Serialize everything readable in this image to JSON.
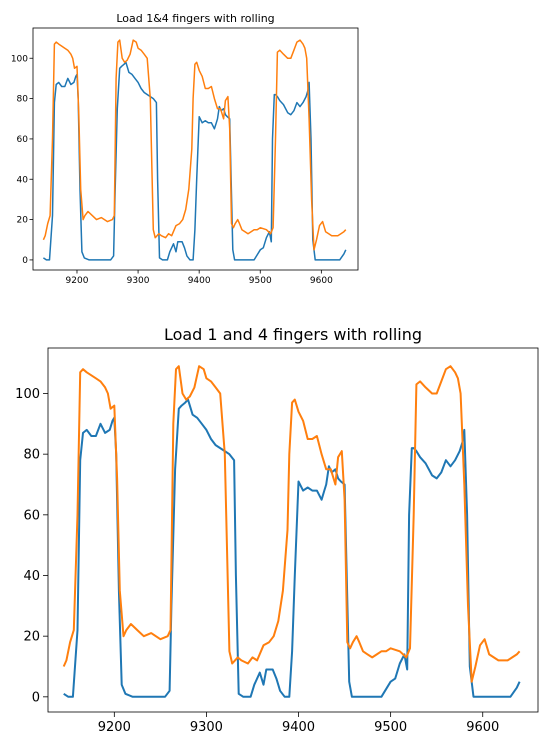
{
  "chart_data": [
    {
      "type": "line",
      "title": "Load 1&4 fingers with rolling",
      "xlabel": "",
      "ylabel": "",
      "xlim": [
        9128,
        9660
      ],
      "ylim": [
        -5,
        115
      ],
      "xticks": [
        "9200",
        "9300",
        "9400",
        "9500",
        "9600"
      ],
      "yticks": [
        "0",
        "20",
        "40",
        "60",
        "80",
        "100"
      ],
      "grid": false,
      "series": [
        {
          "color": "#1f77b4",
          "x": [
            9145,
            9150,
            9155,
            9160,
            9163,
            9166,
            9170,
            9175,
            9180,
            9185,
            9190,
            9195,
            9198,
            9200,
            9202,
            9205,
            9208,
            9212,
            9220,
            9240,
            9255,
            9260,
            9262,
            9266,
            9270,
            9273,
            9277,
            9280,
            9285,
            9290,
            9295,
            9300,
            9305,
            9310,
            9320,
            9325,
            9330,
            9332,
            9335,
            9340,
            9348,
            9352,
            9358,
            9362,
            9365,
            9368,
            9372,
            9376,
            9380,
            9385,
            9390,
            9393,
            9396,
            9400,
            9405,
            9410,
            9415,
            9420,
            9425,
            9428,
            9430,
            9433,
            9436,
            9440,
            9443,
            9446,
            9450,
            9455,
            9458,
            9462,
            9470,
            9480,
            9490,
            9500,
            9505,
            9510,
            9515,
            9518,
            9520,
            9523,
            9525,
            9528,
            9532,
            9538,
            9545,
            9550,
            9555,
            9560,
            9565,
            9570,
            9575,
            9578,
            9580,
            9583,
            9586,
            9590,
            9600,
            9610,
            9620,
            9630,
            9637,
            9640
          ],
          "y": [
            1,
            0,
            0,
            22,
            78,
            87,
            88,
            86,
            86,
            90,
            87,
            88,
            91,
            92,
            80,
            35,
            4,
            1,
            0,
            0,
            0,
            2,
            30,
            75,
            95,
            96,
            97,
            98,
            93,
            92,
            90,
            88,
            85,
            83,
            81,
            80,
            78,
            40,
            1,
            0,
            0,
            4,
            8,
            4,
            9,
            9,
            9,
            6,
            2,
            0,
            0,
            15,
            40,
            71,
            68,
            69,
            68,
            68,
            65,
            68,
            70,
            76,
            74,
            75,
            72,
            71,
            70,
            5,
            0,
            0,
            0,
            0,
            0,
            5,
            6,
            11,
            14,
            9,
            60,
            82,
            82,
            81,
            79,
            77,
            73,
            72,
            74,
            78,
            76,
            78,
            81,
            84,
            88,
            60,
            10,
            0,
            0,
            0,
            0,
            0,
            3,
            5
          ]
        },
        {
          "color": "#ff7f0e",
          "x": [
            9145,
            9148,
            9152,
            9156,
            9160,
            9163,
            9166,
            9170,
            9175,
            9180,
            9185,
            9190,
            9193,
            9196,
            9200,
            9203,
            9206,
            9210,
            9213,
            9218,
            9225,
            9232,
            9240,
            9250,
            9258,
            9261,
            9264,
            9267,
            9270,
            9274,
            9278,
            9282,
            9287,
            9292,
            9297,
            9300,
            9305,
            9310,
            9315,
            9320,
            9325,
            9328,
            9331,
            9334,
            9338,
            9345,
            9350,
            9355,
            9362,
            9368,
            9373,
            9378,
            9383,
            9388,
            9390,
            9393,
            9396,
            9400,
            9405,
            9410,
            9415,
            9420,
            9425,
            9430,
            9435,
            9440,
            9443,
            9447,
            9450,
            9453,
            9456,
            9459,
            9463,
            9466,
            9470,
            9475,
            9480,
            9485,
            9490,
            9495,
            9500,
            9510,
            9517,
            9521,
            9525,
            9528,
            9532,
            9538,
            9545,
            9550,
            9555,
            9560,
            9565,
            9570,
            9573,
            9576,
            9580,
            9584,
            9588,
            9592,
            9597,
            9602,
            9607,
            9612,
            9617,
            9622,
            9627,
            9632,
            9637,
            9640
          ],
          "y": [
            10,
            12,
            18,
            22,
            60,
            107,
            108,
            107,
            106,
            105,
            104,
            102,
            100,
            95,
            96,
            72,
            35,
            20,
            22,
            24,
            22,
            20,
            21,
            19,
            20,
            22,
            90,
            108,
            109,
            100,
            98,
            99,
            102,
            109,
            108,
            105,
            104,
            102,
            100,
            80,
            15,
            11,
            12,
            13,
            12,
            11,
            13,
            12,
            17,
            18,
            20,
            25,
            35,
            55,
            80,
            97,
            98,
            94,
            91,
            85,
            85,
            86,
            80,
            75,
            75,
            70,
            79,
            81,
            65,
            18,
            16,
            18,
            20,
            18,
            15,
            14,
            13,
            14,
            15,
            15,
            16,
            15,
            13,
            16,
            60,
            103,
            104,
            102,
            100,
            100,
            104,
            108,
            109,
            107,
            105,
            100,
            70,
            30,
            5,
            10,
            17,
            19,
            14,
            13,
            12,
            12,
            12,
            13,
            14,
            15
          ]
        }
      ]
    },
    {
      "type": "line",
      "title": "Load 1 and 4 fingers with rolling",
      "xlabel": "",
      "ylabel": "",
      "xlim": [
        9128,
        9660
      ],
      "ylim": [
        -5,
        115
      ],
      "xticks": [
        "9200",
        "9300",
        "9400",
        "9500",
        "9600"
      ],
      "yticks": [
        "0",
        "20",
        "40",
        "60",
        "80",
        "100"
      ],
      "grid": false,
      "series": [
        {
          "color": "#1f77b4",
          "x": [
            9145,
            9150,
            9155,
            9160,
            9163,
            9166,
            9170,
            9175,
            9180,
            9185,
            9190,
            9195,
            9198,
            9200,
            9202,
            9205,
            9208,
            9212,
            9220,
            9240,
            9255,
            9260,
            9262,
            9266,
            9270,
            9273,
            9277,
            9280,
            9285,
            9290,
            9295,
            9300,
            9305,
            9310,
            9320,
            9325,
            9330,
            9332,
            9335,
            9340,
            9348,
            9352,
            9358,
            9362,
            9365,
            9368,
            9372,
            9376,
            9380,
            9385,
            9390,
            9393,
            9396,
            9400,
            9405,
            9410,
            9415,
            9420,
            9425,
            9428,
            9430,
            9433,
            9436,
            9440,
            9443,
            9446,
            9450,
            9455,
            9458,
            9462,
            9470,
            9480,
            9490,
            9500,
            9505,
            9510,
            9515,
            9518,
            9520,
            9523,
            9525,
            9528,
            9532,
            9538,
            9545,
            9550,
            9555,
            9560,
            9565,
            9570,
            9575,
            9578,
            9580,
            9583,
            9586,
            9590,
            9600,
            9610,
            9620,
            9630,
            9637,
            9640
          ],
          "y": [
            1,
            0,
            0,
            22,
            78,
            87,
            88,
            86,
            86,
            90,
            87,
            88,
            91,
            92,
            80,
            35,
            4,
            1,
            0,
            0,
            0,
            2,
            30,
            75,
            95,
            96,
            97,
            98,
            93,
            92,
            90,
            88,
            85,
            83,
            81,
            80,
            78,
            40,
            1,
            0,
            0,
            4,
            8,
            4,
            9,
            9,
            9,
            6,
            2,
            0,
            0,
            15,
            40,
            71,
            68,
            69,
            68,
            68,
            65,
            68,
            70,
            76,
            74,
            75,
            72,
            71,
            70,
            5,
            0,
            0,
            0,
            0,
            0,
            5,
            6,
            11,
            14,
            9,
            60,
            82,
            82,
            81,
            79,
            77,
            73,
            72,
            74,
            78,
            76,
            78,
            81,
            84,
            88,
            60,
            10,
            0,
            0,
            0,
            0,
            0,
            3,
            5
          ]
        },
        {
          "color": "#ff7f0e",
          "x": [
            9145,
            9148,
            9152,
            9156,
            9160,
            9163,
            9166,
            9170,
            9175,
            9180,
            9185,
            9190,
            9193,
            9196,
            9200,
            9203,
            9206,
            9210,
            9213,
            9218,
            9225,
            9232,
            9240,
            9250,
            9258,
            9261,
            9264,
            9267,
            9270,
            9274,
            9278,
            9282,
            9287,
            9292,
            9297,
            9300,
            9305,
            9310,
            9315,
            9320,
            9325,
            9328,
            9331,
            9334,
            9338,
            9345,
            9350,
            9355,
            9362,
            9368,
            9373,
            9378,
            9383,
            9388,
            9390,
            9393,
            9396,
            9400,
            9405,
            9410,
            9415,
            9420,
            9425,
            9430,
            9435,
            9440,
            9443,
            9447,
            9450,
            9453,
            9456,
            9459,
            9463,
            9466,
            9470,
            9475,
            9480,
            9485,
            9490,
            9495,
            9500,
            9510,
            9517,
            9521,
            9525,
            9528,
            9532,
            9538,
            9545,
            9550,
            9555,
            9560,
            9565,
            9570,
            9573,
            9576,
            9580,
            9584,
            9588,
            9592,
            9597,
            9602,
            9607,
            9612,
            9617,
            9622,
            9627,
            9632,
            9637,
            9640
          ],
          "y": [
            10,
            12,
            18,
            22,
            60,
            107,
            108,
            107,
            106,
            105,
            104,
            102,
            100,
            95,
            96,
            72,
            35,
            20,
            22,
            24,
            22,
            20,
            21,
            19,
            20,
            22,
            90,
            108,
            109,
            100,
            98,
            99,
            102,
            109,
            108,
            105,
            104,
            102,
            100,
            80,
            15,
            11,
            12,
            13,
            12,
            11,
            13,
            12,
            17,
            18,
            20,
            25,
            35,
            55,
            80,
            97,
            98,
            94,
            91,
            85,
            85,
            86,
            80,
            75,
            75,
            70,
            79,
            81,
            65,
            18,
            16,
            18,
            20,
            18,
            15,
            14,
            13,
            14,
            15,
            15,
            16,
            15,
            13,
            16,
            60,
            103,
            104,
            102,
            100,
            100,
            104,
            108,
            109,
            107,
            105,
            100,
            70,
            30,
            5,
            10,
            17,
            19,
            14,
            13,
            12,
            12,
            12,
            13,
            14,
            15
          ]
        }
      ]
    }
  ]
}
